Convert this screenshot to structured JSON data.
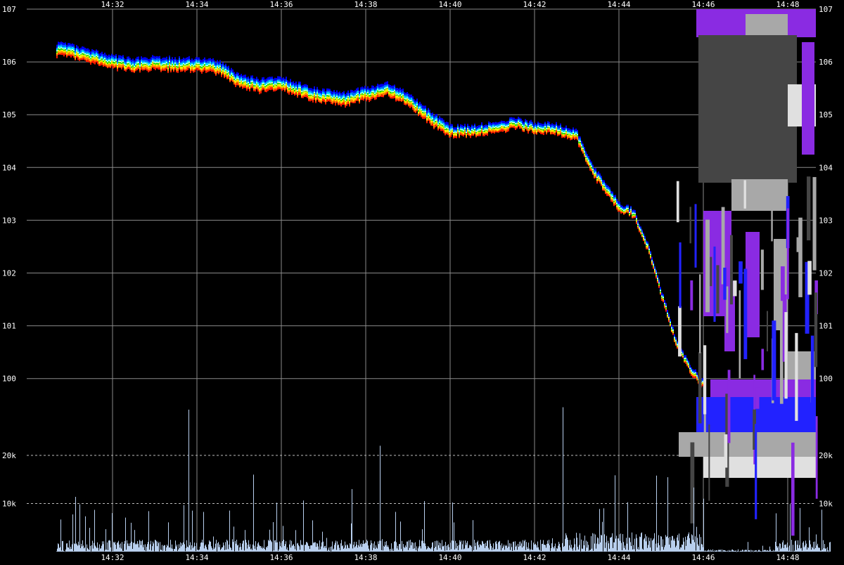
{
  "chart_data": {
    "type": "line",
    "title": "",
    "xlabel": "",
    "ylabel": "",
    "x_ticks": [
      "14:32",
      "14:34",
      "14:36",
      "14:38",
      "14:40",
      "14:42",
      "14:44",
      "14:46",
      "14:48"
    ],
    "x_range_minutes": [
      "14:30:40",
      "14:49:20"
    ],
    "price_axis": {
      "ylim": [
        99.5,
        107
      ],
      "ticks": [
        "100",
        "101",
        "102",
        "103",
        "104",
        "105",
        "106",
        "107"
      ],
      "left_and_right": true,
      "grid": true
    },
    "volume_axis": {
      "ticks": [
        "10k",
        "20k"
      ],
      "tick_values": [
        10000,
        20000
      ],
      "grid": "dashed",
      "left_and_right": true
    },
    "series": [
      {
        "role": "quote band (bid/ask stack)",
        "x": [
          "14:30:40",
          "14:31:00",
          "14:31:30",
          "14:32:00",
          "14:32:30",
          "14:33:00",
          "14:33:30",
          "14:34:00",
          "14:34:30",
          "14:35:00",
          "14:35:30",
          "14:36:00",
          "14:36:30",
          "14:37:00",
          "14:37:30",
          "14:38:00",
          "14:38:30",
          "14:39:00",
          "14:39:30",
          "14:40:00",
          "14:40:30",
          "14:41:00",
          "14:41:30",
          "14:42:00",
          "14:42:30",
          "14:43:00",
          "14:43:20",
          "14:43:40",
          "14:44:00",
          "14:44:20",
          "14:44:40",
          "14:45:00",
          "14:45:20",
          "14:45:40",
          "14:46:00"
        ],
        "values": [
          106.25,
          106.2,
          106.1,
          106.0,
          105.95,
          105.98,
          105.96,
          105.96,
          105.9,
          105.65,
          105.55,
          105.6,
          105.45,
          105.35,
          105.3,
          105.4,
          105.5,
          105.3,
          104.95,
          104.7,
          104.7,
          104.75,
          104.85,
          104.75,
          104.75,
          104.6,
          104.0,
          103.6,
          103.25,
          103.15,
          102.5,
          101.6,
          100.7,
          100.2,
          99.9
        ]
      }
    ],
    "colors": {
      "background": "#000000",
      "grid": "#8a8a8a",
      "text": "#ffffff",
      "volume": "#b8cfee",
      "band": [
        "#ff1a00",
        "#ff8800",
        "#ffee00",
        "#22dd00",
        "#00e5ff",
        "#0066ff",
        "#0000ee"
      ],
      "midline": "#ffffff",
      "quote_block": [
        "#8a2be2",
        "#2222ff",
        "#a8a8a8",
        "#454545",
        "#e0e0e0"
      ]
    },
    "legend": "none"
  }
}
